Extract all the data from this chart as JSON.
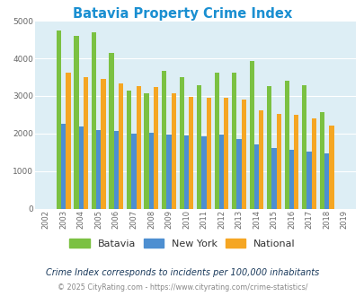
{
  "title": "Batavia Property Crime Index",
  "years": [
    2002,
    2003,
    2004,
    2005,
    2006,
    2007,
    2008,
    2009,
    2010,
    2011,
    2012,
    2013,
    2014,
    2015,
    2016,
    2017,
    2018,
    2019
  ],
  "batavia": [
    0,
    4750,
    4600,
    4700,
    4150,
    3150,
    3080,
    3660,
    3490,
    3280,
    3620,
    3620,
    3940,
    3260,
    3400,
    3290,
    2560,
    0
  ],
  "new_york": [
    0,
    2260,
    2180,
    2100,
    2070,
    1990,
    2010,
    1970,
    1950,
    1930,
    1980,
    1860,
    1700,
    1610,
    1560,
    1510,
    1460,
    0
  ],
  "national": [
    0,
    3620,
    3500,
    3450,
    3340,
    3270,
    3240,
    3060,
    2970,
    2960,
    2960,
    2900,
    2620,
    2510,
    2490,
    2400,
    2200,
    0
  ],
  "batavia_color": "#7bc142",
  "newyork_color": "#4d8fd1",
  "national_color": "#f5a623",
  "bg_color": "#ddeef5",
  "ylim": [
    0,
    5000
  ],
  "yticks": [
    0,
    1000,
    2000,
    3000,
    4000,
    5000
  ],
  "legend_labels": [
    "Batavia",
    "New York",
    "National"
  ],
  "subtitle": "Crime Index corresponds to incidents per 100,000 inhabitants",
  "footer": "© 2025 CityRating.com - https://www.cityrating.com/crime-statistics/",
  "title_color": "#1a8fd1",
  "subtitle_color": "#1a3a5c",
  "footer_color": "#888888",
  "footer_link_color": "#1a8fd1",
  "bar_width": 0.27
}
